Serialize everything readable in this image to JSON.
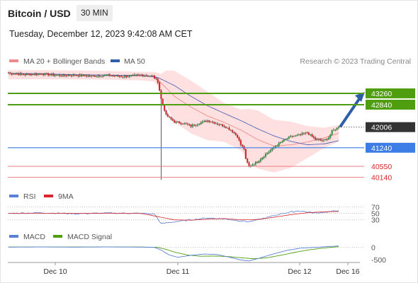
{
  "header": {
    "title": "Bitcoin / USD",
    "timeframe": "30 MIN",
    "datetime": "Tuesday, December 12, 2023 9:42:08 AM CET",
    "credit": "Research © 2023 Trading Central"
  },
  "colors": {
    "candle_up": "#2e9c3a",
    "candle_down": "#d8262b",
    "bollinger_fill": "#fde0df",
    "ma20": "#f08a8a",
    "ma50": "#5567b8",
    "resistance": "#4f9e10",
    "pivot": "#3d7ee6",
    "support": "#ea6e75",
    "last_price": "#333333",
    "arrow": "#2f5ea8",
    "rsi": "#5b7fd4",
    "rsi_ma": "#d8262b",
    "macd": "#5b7fd4",
    "macd_signal": "#4f9e10"
  },
  "chart_data": [
    {
      "type": "candlestick",
      "legend": [
        {
          "name": "MA 20 + Bollinger Bands",
          "color": "#f08a8a"
        },
        {
          "name": "MA 50",
          "color": "#2f5ea8"
        }
      ],
      "ylim": [
        40000,
        44100
      ],
      "x_ticks": [
        "Dec 10",
        "Dec 11",
        "Dec 12",
        "Dec 16"
      ],
      "levels": [
        {
          "value": 43260,
          "label": "43260",
          "role": "resistance",
          "color": "#4f9e10"
        },
        {
          "value": 42840,
          "label": "42840",
          "role": "resistance",
          "color": "#4f9e10"
        },
        {
          "value": 42006,
          "label": "42006",
          "role": "last",
          "color": "#333333"
        },
        {
          "value": 41240,
          "label": "41240",
          "role": "pivot",
          "color": "#3d7ee6"
        },
        {
          "value": 40550,
          "label": "40550",
          "role": "support",
          "color": "#ea6e75"
        },
        {
          "value": 40140,
          "label": "40140",
          "role": "support",
          "color": "#ea6e75"
        }
      ],
      "close_anchors": [
        [
          0,
          44020
        ],
        [
          10,
          43960
        ],
        [
          20,
          43990
        ],
        [
          30,
          43920
        ],
        [
          40,
          43940
        ],
        [
          50,
          43900
        ],
        [
          60,
          43930
        ],
        [
          70,
          43880
        ],
        [
          80,
          43950
        ],
        [
          87,
          43900
        ],
        [
          90,
          43700
        ],
        [
          92,
          43050
        ],
        [
          95,
          42450
        ],
        [
          100,
          42200
        ],
        [
          105,
          42150
        ],
        [
          110,
          42050
        ],
        [
          115,
          42150
        ],
        [
          120,
          42250
        ],
        [
          125,
          42150
        ],
        [
          130,
          42050
        ],
        [
          135,
          41850
        ],
        [
          138,
          41650
        ],
        [
          140,
          41350
        ],
        [
          142,
          41200
        ],
        [
          143,
          40800
        ],
        [
          145,
          40550
        ],
        [
          150,
          40720
        ],
        [
          155,
          41000
        ],
        [
          160,
          41250
        ],
        [
          165,
          41480
        ],
        [
          170,
          41650
        ],
        [
          175,
          41700
        ],
        [
          180,
          41800
        ],
        [
          185,
          41550
        ],
        [
          190,
          41500
        ],
        [
          193,
          41620
        ],
        [
          195,
          41850
        ],
        [
          199,
          42006
        ]
      ],
      "tall_wick": {
        "index": 92,
        "low": 40050
      },
      "ma20_anchors": [
        [
          0,
          43950
        ],
        [
          30,
          43950
        ],
        [
          60,
          43930
        ],
        [
          80,
          43900
        ],
        [
          88,
          43880
        ],
        [
          92,
          43650
        ],
        [
          100,
          43150
        ],
        [
          110,
          42750
        ],
        [
          120,
          42420
        ],
        [
          130,
          42180
        ],
        [
          140,
          41900
        ],
        [
          150,
          41550
        ],
        [
          160,
          41300
        ],
        [
          170,
          41350
        ],
        [
          180,
          41450
        ],
        [
          190,
          41600
        ],
        [
          199,
          41780
        ]
      ],
      "ma50_anchors": [
        [
          0,
          44000
        ],
        [
          20,
          43990
        ],
        [
          40,
          43950
        ],
        [
          60,
          43940
        ],
        [
          80,
          43920
        ],
        [
          90,
          43850
        ],
        [
          100,
          43550
        ],
        [
          110,
          43150
        ],
        [
          120,
          42800
        ],
        [
          130,
          42520
        ],
        [
          140,
          42250
        ],
        [
          150,
          41950
        ],
        [
          160,
          41680
        ],
        [
          170,
          41480
        ],
        [
          180,
          41350
        ],
        [
          190,
          41380
        ],
        [
          199,
          41500
        ]
      ],
      "band_width_anchors": [
        [
          0,
          170
        ],
        [
          80,
          160
        ],
        [
          88,
          180
        ],
        [
          92,
          330
        ],
        [
          95,
          650
        ],
        [
          100,
          950
        ],
        [
          110,
          980
        ],
        [
          120,
          900
        ],
        [
          130,
          720
        ],
        [
          140,
          760
        ],
        [
          145,
          960
        ],
        [
          150,
          1080
        ],
        [
          160,
          980
        ],
        [
          170,
          860
        ],
        [
          180,
          600
        ],
        [
          190,
          380
        ],
        [
          199,
          300
        ]
      ],
      "forecast_arrow": {
        "from": 42050,
        "to": 43260
      }
    },
    {
      "type": "line",
      "legend": [
        {
          "name": "RSI",
          "color": "#5b7fd4"
        },
        {
          "name": "9MA",
          "color": "#d8262b"
        }
      ],
      "ylim": [
        14,
        80
      ],
      "y_ticks": [
        "70",
        "50",
        "30"
      ],
      "y_tick_values": [
        70,
        50,
        30
      ],
      "rsi_anchors": [
        [
          0,
          50
        ],
        [
          20,
          52
        ],
        [
          40,
          49
        ],
        [
          60,
          51
        ],
        [
          80,
          50
        ],
        [
          88,
          48
        ],
        [
          92,
          18
        ],
        [
          100,
          24
        ],
        [
          110,
          30
        ],
        [
          120,
          36
        ],
        [
          130,
          33
        ],
        [
          140,
          27
        ],
        [
          145,
          24
        ],
        [
          155,
          36
        ],
        [
          165,
          50
        ],
        [
          175,
          58
        ],
        [
          185,
          51
        ],
        [
          195,
          56
        ],
        [
          199,
          60
        ]
      ],
      "ma_anchors": [
        [
          0,
          50
        ],
        [
          20,
          50
        ],
        [
          40,
          50
        ],
        [
          60,
          50
        ],
        [
          80,
          50
        ],
        [
          92,
          38
        ],
        [
          100,
          30
        ],
        [
          110,
          29
        ],
        [
          120,
          32
        ],
        [
          130,
          34
        ],
        [
          140,
          30
        ],
        [
          150,
          31
        ],
        [
          160,
          38
        ],
        [
          170,
          46
        ],
        [
          180,
          52
        ],
        [
          190,
          55
        ],
        [
          199,
          56
        ]
      ]
    },
    {
      "type": "line",
      "legend": [
        {
          "name": "MACD",
          "color": "#5b7fd4"
        },
        {
          "name": "MACD Signal",
          "color": "#4f9e10"
        }
      ],
      "ylim": [
        -650,
        180
      ],
      "y_ticks": [
        "0",
        "-500"
      ],
      "y_tick_values": [
        0,
        -500
      ],
      "macd_anchors": [
        [
          0,
          0
        ],
        [
          20,
          5
        ],
        [
          40,
          0
        ],
        [
          60,
          5
        ],
        [
          80,
          0
        ],
        [
          88,
          -10
        ],
        [
          92,
          -120
        ],
        [
          97,
          -320
        ],
        [
          102,
          -410
        ],
        [
          110,
          -330
        ],
        [
          118,
          -280
        ],
        [
          126,
          -300
        ],
        [
          134,
          -420
        ],
        [
          140,
          -520
        ],
        [
          145,
          -560
        ],
        [
          152,
          -430
        ],
        [
          160,
          -270
        ],
        [
          168,
          -130
        ],
        [
          176,
          -40
        ],
        [
          186,
          -5
        ],
        [
          192,
          20
        ],
        [
          199,
          45
        ]
      ],
      "signal_anchors": [
        [
          0,
          5
        ],
        [
          40,
          5
        ],
        [
          80,
          5
        ],
        [
          90,
          -10
        ],
        [
          95,
          -90
        ],
        [
          100,
          -200
        ],
        [
          108,
          -320
        ],
        [
          116,
          -370
        ],
        [
          124,
          -360
        ],
        [
          132,
          -380
        ],
        [
          140,
          -430
        ],
        [
          148,
          -470
        ],
        [
          156,
          -430
        ],
        [
          164,
          -330
        ],
        [
          172,
          -220
        ],
        [
          180,
          -120
        ],
        [
          188,
          -50
        ],
        [
          195,
          -5
        ],
        [
          199,
          15
        ]
      ]
    }
  ]
}
